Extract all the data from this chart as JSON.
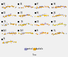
{
  "fig_bg": "#f0f0f0",
  "subplot_bg": "#f0f0f0",
  "n_cols": 4,
  "n_rows": 5,
  "channel_names": [
    "F3",
    "F4",
    "F7",
    "F8",
    "C3",
    "C4",
    "P3",
    "P4",
    "T5",
    "T6",
    "O1",
    "O2",
    "Fp1",
    "Fp2",
    "Fz",
    "Cz",
    "Pz",
    "",
    "",
    ""
  ],
  "ctrl_base_colors": [
    "#8888bb",
    "#9999cc",
    "#7777aa",
    "#8888bb",
    "#9988cc",
    "#8877bb",
    "#aaaacc",
    "#9999bb",
    "#aabbcc",
    "#99aabb",
    "#bbaacc",
    "#aabbbb",
    "#aaaacc",
    "#9999bb",
    "#bbaacc",
    "#99aabb",
    "#aaaacc",
    "#9999bb",
    "#bbaacc",
    "#99aabb"
  ],
  "alc_base_colors": [
    "#dd9900",
    "#cc8800",
    "#ee9900",
    "#dd8800",
    "#ddaa00",
    "#cc9900",
    "#eebb00",
    "#dd9900",
    "#cc8800",
    "#ddaa00",
    "#ee9900",
    "#ddbb00",
    "#cc8800",
    "#ddaa00",
    "#ee9900",
    "#cc8800",
    "#ddaa00",
    "#ee9900",
    "#cc8800",
    "#ddbb00"
  ],
  "extra_colors_ctrl": [
    "#cc99aa",
    "#ffaacc",
    "#ddaacc",
    "#cc88aa"
  ],
  "extra_colors_alc": [
    "#ffcc00",
    "#ff9900",
    "#eeaa00",
    "#ffbb00"
  ],
  "ylim": [
    -6,
    10
  ],
  "xlim": [
    0,
    256
  ],
  "label_fontsize": 2.2,
  "dot_size": 0.8,
  "line_lw": 0.7,
  "legend_ctrl_color": "#8888bb",
  "legend_alc_color": "#dd9900",
  "bottom_text1": "_ _",
  "bottom_text2": "___",
  "bottom_text3": "control"
}
